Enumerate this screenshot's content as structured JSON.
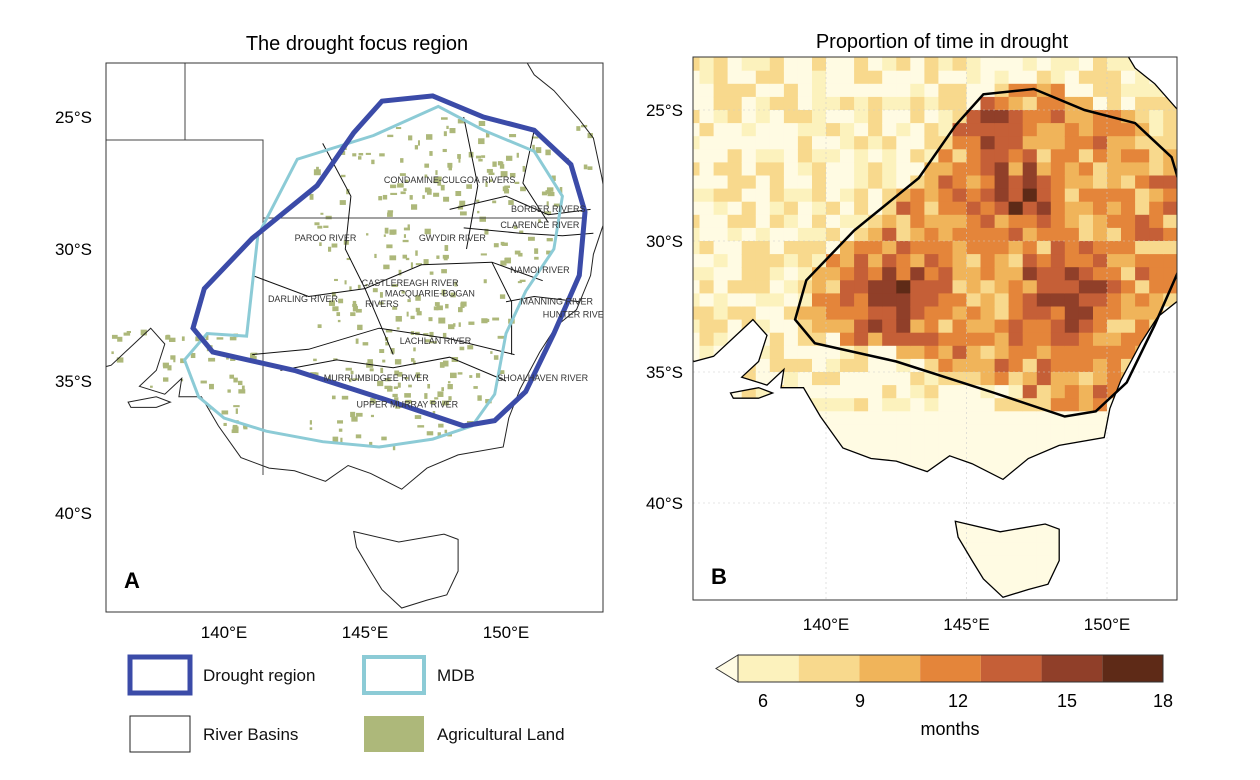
{
  "panel_a": {
    "title": "The drought focus region",
    "letter": "A",
    "lat_ticks": [
      "25°S",
      "30°S",
      "35°S",
      "40°S"
    ],
    "lon_ticks": [
      "140°E",
      "145°E",
      "150°E"
    ],
    "rivers": [
      "CONDAMINE-CULGOA RIVERS",
      "BORDER RIVERS",
      "CLARENCE RIVER",
      "PAROO RIVER",
      "GWYDIR RIVER",
      "NAMOI RIVER",
      "CASTLEREAGH RIVER",
      "DARLING RIVER",
      "MACQUARIE-BOGAN",
      "RIVERS",
      "MANNING RIVER",
      "HUNTER RIVER",
      "LACHLAN RIVER",
      "MURRUMBIDGEE RIVER",
      "SHOALHAVEN RIVER",
      "UPPER MURRAY RIVER"
    ]
  },
  "panel_b": {
    "title": "Proportion of time in drought",
    "letter": "B",
    "lat_ticks": [
      "25°S",
      "30°S",
      "35°S",
      "40°S"
    ],
    "lon_ticks": [
      "140°E",
      "145°E",
      "150°E"
    ]
  },
  "legend": {
    "drought_region": "Drought region",
    "mdb": "MDB",
    "river_basins": "River Basins",
    "agricultural_land": "Agricultural Land"
  },
  "colorbar": {
    "label": "months",
    "ticks": [
      "6",
      "9",
      "12",
      "15",
      "18"
    ],
    "extend": "min",
    "colors": [
      "#fffbe3",
      "#fcf2bd",
      "#f8d98d",
      "#f0b45a",
      "#e4853a",
      "#c55f37",
      "#903f29",
      "#5e2a17"
    ]
  },
  "colors": {
    "drought_region": "#3b4ba8",
    "mdb": "#8ccbd6",
    "agricultural_land": "#adb87a"
  }
}
